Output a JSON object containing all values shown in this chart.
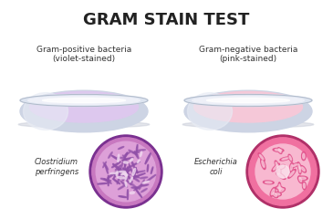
{
  "title": "GRAM STAIN TEST",
  "title_fontsize": 13,
  "title_fontweight": "bold",
  "background_color": "#ffffff",
  "left_label_line1": "Gram-positive bacteria",
  "left_label_line2": "(violet-stained)",
  "right_label_line1": "Gram-negative bacteria",
  "right_label_line2": "(pink-stained)",
  "left_species_line1": "Clostridium",
  "left_species_line2": "perfringens",
  "right_species_line1": "Escherichia",
  "right_species_line2": "coli",
  "left_dish_fill": "#ddc8ee",
  "right_dish_fill": "#f5c8d8",
  "dish_rim_outer": "#dde4f0",
  "dish_rim_inner": "#eef0f8",
  "dish_body_color": "#cdd4e4",
  "left_circ_border": "#7a3090",
  "left_circ_bg": "#c878c0",
  "left_circ_inner": "#dda0d8",
  "right_circ_border": "#b03068",
  "right_circ_bg": "#f070a0",
  "right_circ_inner": "#f8b8d0"
}
